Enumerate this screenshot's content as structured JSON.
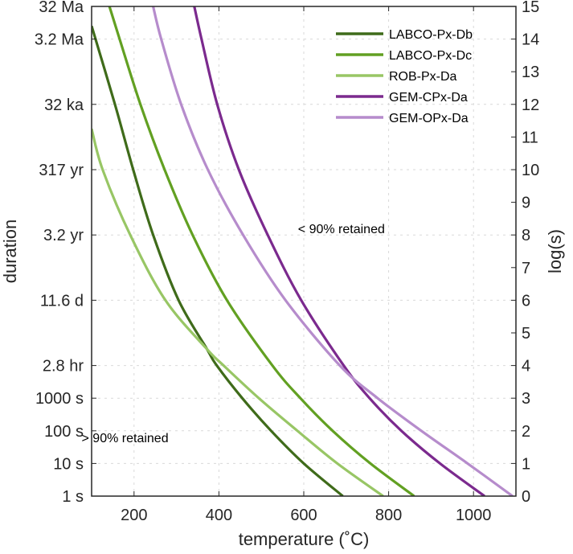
{
  "chart_data": {
    "type": "line",
    "xlabel": "temperature (˚C)",
    "ylabel_left": "duration",
    "ylabel_right": "log(s)",
    "xlim": [
      100,
      1100
    ],
    "ylim": [
      0,
      15
    ],
    "grid": true,
    "legend_position": "top-right",
    "x_ticks": [
      200,
      400,
      600,
      800,
      1000
    ],
    "y_right_ticks": [
      0,
      1,
      2,
      3,
      4,
      5,
      6,
      7,
      8,
      9,
      10,
      11,
      12,
      13,
      14,
      15
    ],
    "y_left_ticks": [
      {
        "log": 0,
        "label": "1 s"
      },
      {
        "log": 1,
        "label": "10 s"
      },
      {
        "log": 2,
        "label": "100 s"
      },
      {
        "log": 3,
        "label": "1000 s"
      },
      {
        "log": 4,
        "label": "2.8 hr"
      },
      {
        "log": 6,
        "label": "11.6 d"
      },
      {
        "log": 8,
        "label": "3.2 yr"
      },
      {
        "log": 10,
        "label": "317 yr"
      },
      {
        "log": 12,
        "label": "32 ka"
      },
      {
        "log": 14,
        "label": "3.2 Ma"
      },
      {
        "log": 15,
        "label": "32 Ma"
      }
    ],
    "annotations": [
      {
        "text": "< 90% retained",
        "x": 700,
        "y": 8.2
      },
      {
        "text": "> 90% retained",
        "x": 190,
        "y": 1.8
      }
    ],
    "series": [
      {
        "name": "LABCO-Px-Db",
        "color": "#3f6b1a",
        "points": [
          [
            100,
            14.4
          ],
          [
            155,
            12
          ],
          [
            198,
            10
          ],
          [
            245,
            8
          ],
          [
            305,
            6
          ],
          [
            372,
            4.5
          ],
          [
            395,
            4
          ],
          [
            455,
            3
          ],
          [
            523,
            2
          ],
          [
            600,
            1
          ],
          [
            692,
            0
          ]
        ]
      },
      {
        "name": "LABCO-Px-Dc",
        "color": "#62a022",
        "points": [
          [
            142,
            15
          ],
          [
            166,
            14
          ],
          [
            215,
            12
          ],
          [
            272,
            10
          ],
          [
            338,
            8
          ],
          [
            419,
            6
          ],
          [
            526,
            4
          ],
          [
            592,
            3
          ],
          [
            668,
            2
          ],
          [
            757,
            1
          ],
          [
            860,
            0
          ]
        ]
      },
      {
        "name": "ROB-Px-Da",
        "color": "#98c665",
        "points": [
          [
            100,
            11.25
          ],
          [
            126,
            10
          ],
          [
            191,
            8
          ],
          [
            274,
            6
          ],
          [
            372,
            4.5
          ],
          [
            411,
            4
          ],
          [
            494,
            3
          ],
          [
            585,
            2
          ],
          [
            679,
            1
          ],
          [
            787,
            0
          ]
        ]
      },
      {
        "name": "GEM-CPx-Da",
        "color": "#7b2a8e",
        "points": [
          [
            342,
            15
          ],
          [
            359,
            14
          ],
          [
            396,
            12
          ],
          [
            447,
            10
          ],
          [
            515,
            8
          ],
          [
            594,
            6
          ],
          [
            694,
            4
          ],
          [
            755,
            3
          ],
          [
            830,
            2
          ],
          [
            921,
            1
          ],
          [
            1026,
            0
          ]
        ]
      },
      {
        "name": "GEM-OPx-Da",
        "color": "#b68ccc",
        "points": [
          [
            245,
            15
          ],
          [
            264,
            14
          ],
          [
            311,
            12
          ],
          [
            374,
            10
          ],
          [
            457,
            8
          ],
          [
            557,
            6
          ],
          [
            685,
            4
          ],
          [
            774,
            3
          ],
          [
            877,
            2
          ],
          [
            986,
            1
          ],
          [
            1092,
            0
          ]
        ]
      }
    ]
  }
}
